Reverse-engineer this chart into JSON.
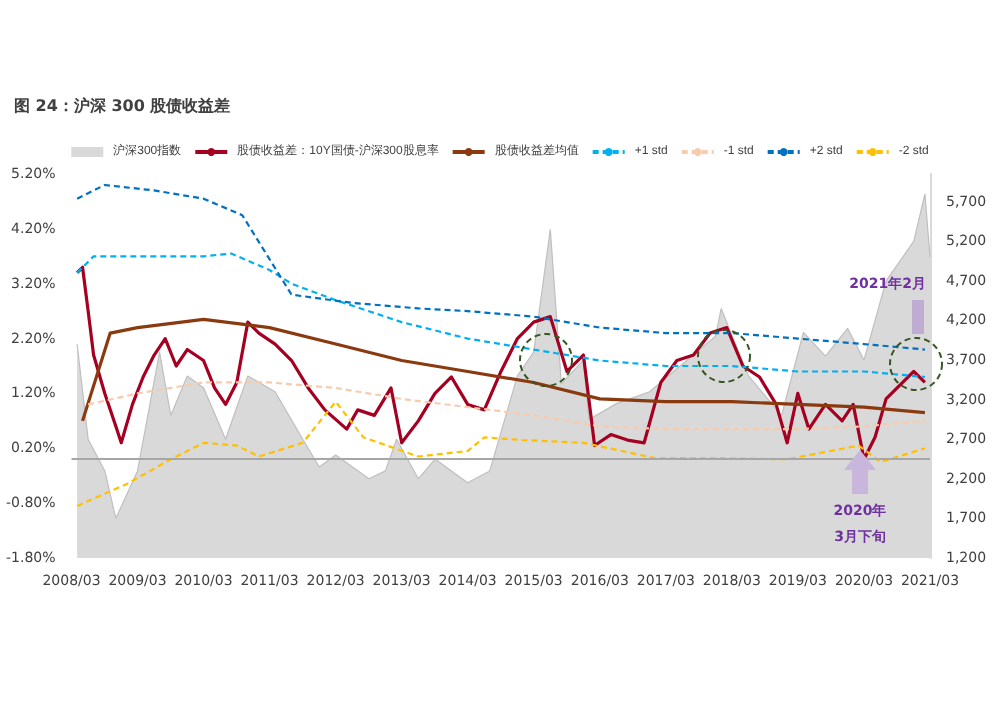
{
  "chart_data": {
    "type": "line",
    "title": "图 24：沪深 300 股债收益差",
    "xlim": [
      "2008-03",
      "2021-03"
    ],
    "xticks": [
      {
        "value": "2008-03",
        "label": "2008/03"
      },
      {
        "value": "2009-03",
        "label": "2009/03"
      },
      {
        "value": "2010-03",
        "label": "2010/03"
      },
      {
        "value": "2011-03",
        "label": "2011/03"
      },
      {
        "value": "2012-03",
        "label": "2012/03"
      },
      {
        "value": "2013-03",
        "label": "2013/03"
      },
      {
        "value": "2014-03",
        "label": "2014/03"
      },
      {
        "value": "2015-03",
        "label": "2015/03"
      },
      {
        "value": "2016-03",
        "label": "2016/03"
      },
      {
        "value": "2017-03",
        "label": "2017/03"
      },
      {
        "value": "2018-03",
        "label": "2018/03"
      },
      {
        "value": "2019-03",
        "label": "2019/03"
      },
      {
        "value": "2020-03",
        "label": "2020/03"
      },
      {
        "value": "2021-03",
        "label": "2021/03"
      }
    ],
    "ylim": [
      -1.8,
      5.2
    ],
    "yticks": [
      {
        "value": -1.8,
        "label": "-1.80%"
      },
      {
        "value": -0.8,
        "label": "-0.80%"
      },
      {
        "value": 0.2,
        "label": "0.20%"
      },
      {
        "value": 1.2,
        "label": "1.20%"
      },
      {
        "value": 2.2,
        "label": "2.20%"
      },
      {
        "value": 3.2,
        "label": "3.20%"
      },
      {
        "value": 4.2,
        "label": "4.20%"
      },
      {
        "value": 5.2,
        "label": "5.20%"
      }
    ],
    "y2lim": [
      1200,
      6050
    ],
    "y2ticks": [
      {
        "value": 1200,
        "label": "1,200"
      },
      {
        "value": 1700,
        "label": "1,700"
      },
      {
        "value": 2200,
        "label": "2,200"
      },
      {
        "value": 2700,
        "label": "2,700"
      },
      {
        "value": 3200,
        "label": "3,200"
      },
      {
        "value": 3700,
        "label": "3,700"
      },
      {
        "value": 4200,
        "label": "4,200"
      },
      {
        "value": 4700,
        "label": "4,700"
      },
      {
        "value": 5200,
        "label": "5,200"
      },
      {
        "value": 5700,
        "label": "5,700"
      }
    ],
    "legend": "top",
    "grid": false,
    "marker": "none",
    "ref_lines": [
      {
        "axis": "y",
        "value": 0,
        "color": "#a6a6a6"
      }
    ],
    "annotations": [
      "2021年2月",
      "2020年\n3月下旬"
    ],
    "series": [
      {
        "name": "沪深300指数",
        "type": "area",
        "axis": "y2",
        "color": "#d9d9d9",
        "x": [
          "2008-04",
          "2008-06",
          "2008-09",
          "2008-11",
          "2009-03",
          "2009-07",
          "2009-09",
          "2009-12",
          "2010-03",
          "2010-07",
          "2010-11",
          "2011-04",
          "2011-09",
          "2011-12",
          "2012-03",
          "2012-09",
          "2012-12",
          "2013-02",
          "2013-06",
          "2013-09",
          "2014-03",
          "2014-07",
          "2014-12",
          "2015-03",
          "2015-06",
          "2015-08",
          "2015-12",
          "2016-01",
          "2016-06",
          "2016-12",
          "2017-06",
          "2017-12",
          "2018-01",
          "2018-06",
          "2018-12",
          "2019-04",
          "2019-08",
          "2019-12",
          "2020-03",
          "2020-07",
          "2020-12",
          "2021-02",
          "2021-03"
        ],
        "values": [
          3900,
          2700,
          2300,
          1700,
          2300,
          3800,
          3000,
          3500,
          3350,
          2700,
          3500,
          3300,
          2700,
          2350,
          2500,
          2200,
          2300,
          2700,
          2200,
          2450,
          2150,
          2300,
          3500,
          3800,
          5350,
          3400,
          3700,
          2950,
          3150,
          3300,
          3650,
          4000,
          4350,
          3500,
          3000,
          4050,
          3750,
          4100,
          3700,
          4700,
          5200,
          5800,
          5000
        ]
      },
      {
        "name": "股债收益差：10Y国债-沪深300股息率",
        "color": "#a50021",
        "line_style": "solid",
        "x": [
          "2008-04",
          "2008-05",
          "2008-06",
          "2008-07",
          "2008-09",
          "2008-11",
          "2008-12",
          "2009-02",
          "2009-04",
          "2009-06",
          "2009-08",
          "2009-10",
          "2009-12",
          "2010-03",
          "2010-05",
          "2010-07",
          "2010-09",
          "2010-11",
          "2011-01",
          "2011-04",
          "2011-07",
          "2011-10",
          "2012-01",
          "2012-05",
          "2012-07",
          "2012-10",
          "2013-01",
          "2013-03",
          "2013-06",
          "2013-09",
          "2013-12",
          "2014-03",
          "2014-06",
          "2014-09",
          "2014-12",
          "2015-03",
          "2015-06",
          "2015-09",
          "2015-12",
          "2016-02",
          "2016-05",
          "2016-08",
          "2016-11",
          "2017-02",
          "2017-05",
          "2017-08",
          "2017-11",
          "2018-02",
          "2018-05",
          "2018-08",
          "2018-11",
          "2019-01",
          "2019-03",
          "2019-05",
          "2019-08",
          "2019-11",
          "2020-01",
          "2020-03",
          "2020-05",
          "2020-07",
          "2020-10",
          "2020-12",
          "2021-02"
        ],
        "values": [
          3.4,
          3.5,
          2.7,
          1.9,
          1.2,
          0.6,
          0.3,
          1.0,
          1.5,
          1.9,
          2.2,
          1.7,
          2.0,
          1.8,
          1.3,
          1.0,
          1.4,
          2.5,
          2.3,
          2.1,
          1.8,
          1.3,
          0.9,
          0.55,
          0.9,
          0.8,
          1.3,
          0.3,
          0.7,
          1.2,
          1.5,
          1.0,
          0.9,
          1.6,
          2.2,
          2.5,
          2.6,
          1.6,
          1.9,
          0.25,
          0.45,
          0.35,
          0.3,
          1.4,
          1.8,
          1.9,
          2.3,
          2.4,
          1.7,
          1.5,
          1.0,
          0.3,
          1.2,
          0.55,
          1.0,
          0.7,
          1.0,
          0.0,
          0.4,
          1.1,
          1.4,
          1.6,
          1.4
        ]
      },
      {
        "name": "股债收益差均值",
        "color": "#8b3a10",
        "line_style": "solid",
        "x": [
          "2008-05",
          "2008-10",
          "2009-03",
          "2010-03",
          "2011-03",
          "2012-03",
          "2013-03",
          "2014-03",
          "2015-03",
          "2016-03",
          "2017-03",
          "2018-03",
          "2019-03",
          "2020-03",
          "2021-02"
        ],
        "values": [
          0.7,
          2.3,
          2.4,
          2.55,
          2.4,
          2.1,
          1.8,
          1.6,
          1.4,
          1.1,
          1.05,
          1.05,
          1.0,
          0.95,
          0.85
        ]
      },
      {
        "name": "+1 std",
        "color": "#00b0f0",
        "line_style": "dashed",
        "x": [
          "2008-04",
          "2008-07",
          "2010-03",
          "2010-08",
          "2011-03",
          "2011-07",
          "2012-03",
          "2013-03",
          "2014-03",
          "2015-03",
          "2016-03",
          "2017-03",
          "2018-03",
          "2019-03",
          "2020-03",
          "2021-02"
        ],
        "values": [
          3.4,
          3.7,
          3.7,
          3.75,
          3.45,
          3.2,
          2.9,
          2.5,
          2.2,
          2.0,
          1.8,
          1.7,
          1.7,
          1.6,
          1.6,
          1.5
        ]
      },
      {
        "name": "-1 std",
        "color": "#f8cbad",
        "line_style": "dashed",
        "x": [
          "2008-06",
          "2009-03",
          "2010-03",
          "2011-03",
          "2012-03",
          "2013-03",
          "2014-03",
          "2015-03",
          "2016-03",
          "2017-03",
          "2018-03",
          "2019-03",
          "2020-03",
          "2021-02"
        ],
        "values": [
          1.0,
          1.2,
          1.4,
          1.4,
          1.3,
          1.1,
          0.95,
          0.8,
          0.6,
          0.55,
          0.55,
          0.55,
          0.6,
          0.7
        ]
      },
      {
        "name": "+2 std",
        "color": "#0070c0",
        "line_style": "dashed",
        "x": [
          "2008-04",
          "2008-09",
          "2009-06",
          "2010-03",
          "2010-10",
          "2011-07",
          "2012-06",
          "2013-06",
          "2014-03",
          "2015-03",
          "2016-03",
          "2017-03",
          "2018-03",
          "2019-03",
          "2020-03",
          "2021-02"
        ],
        "values": [
          4.75,
          5.0,
          4.9,
          4.75,
          4.45,
          3.0,
          2.85,
          2.75,
          2.7,
          2.6,
          2.4,
          2.3,
          2.3,
          2.2,
          2.1,
          2.0
        ]
      },
      {
        "name": "-2 std",
        "color": "#ffc000",
        "line_style": "dashed",
        "x": [
          "2008-04",
          "2009-01",
          "2009-09",
          "2010-03",
          "2010-09",
          "2011-01",
          "2011-09",
          "2012-03",
          "2012-08",
          "2013-06",
          "2014-03",
          "2014-06",
          "2015-01",
          "2015-12",
          "2017-01",
          "2018-01",
          "2019-01",
          "2020-02",
          "2020-06",
          "2021-02"
        ],
        "values": [
          -0.85,
          -0.45,
          0.0,
          0.3,
          0.25,
          0.05,
          0.3,
          1.05,
          0.4,
          0.05,
          0.15,
          0.4,
          0.35,
          0.3,
          0.02,
          0.02,
          0.0,
          0.25,
          -0.05,
          0.2
        ]
      }
    ]
  }
}
